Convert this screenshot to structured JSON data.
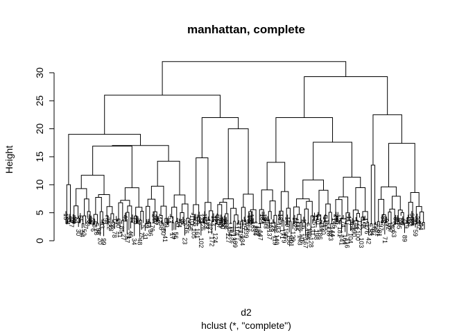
{
  "chart_data": {
    "type": "dendrogram",
    "title": "manhattan, complete",
    "xlabel": "d2",
    "sublabel": "hclust (*, \"complete\")",
    "ylabel": "Height",
    "ylim": [
      0,
      32
    ],
    "yticks": [
      0,
      5,
      10,
      15,
      20,
      25,
      30
    ],
    "leaf_count": 200,
    "root_height": 32.0,
    "top_merges": [
      {
        "name": "root",
        "height": 32.0
      },
      {
        "name": "left-main",
        "height": 26.0
      },
      {
        "name": "right-main",
        "height": 29.3
      },
      {
        "name": "left-a",
        "height": 19.0
      },
      {
        "name": "left-b",
        "height": 22.0
      },
      {
        "name": "right-a",
        "height": 22.0
      },
      {
        "name": "right-b",
        "height": 22.5
      }
    ],
    "leaf_labels": [
      "15",
      "4",
      "51",
      "77",
      "74",
      "9",
      "4",
      "30",
      "65",
      "54",
      "52",
      "7",
      "38",
      "98",
      "30",
      "6",
      "68",
      "26",
      "98",
      "20",
      "93",
      "99",
      "31",
      "73",
      "22",
      "13",
      "28",
      "78",
      "77",
      "10",
      "11",
      "85",
      "27",
      "40",
      "67",
      "21",
      "46",
      "12",
      "34",
      "25",
      "37",
      "48",
      "75",
      "5",
      "31",
      "49",
      "43",
      "36",
      "76",
      "24",
      "20",
      "45",
      "47",
      "58",
      "50",
      "41",
      "19",
      "1",
      "57",
      "17",
      "29",
      "56",
      "70",
      "14",
      "2",
      "32",
      "23",
      "16",
      "35",
      "55",
      "110",
      "105",
      "166",
      "161",
      "138",
      "102",
      "126",
      "182",
      "113",
      "193",
      "121",
      "172",
      "153",
      "124",
      "157",
      "197",
      "108",
      "130",
      "192",
      "158",
      "127",
      "154",
      "187",
      "132",
      "109",
      "114",
      "177",
      "195",
      "134",
      "145",
      "139",
      "168",
      "180",
      "188",
      "163",
      "194",
      "191",
      "159",
      "147",
      "184",
      "151",
      "133",
      "150",
      "137",
      "162",
      "178",
      "119",
      "140",
      "183",
      "189",
      "171",
      "179",
      "196",
      "169",
      "136",
      "101",
      "129",
      "152",
      "185",
      "112",
      "143",
      "115",
      "106",
      "167",
      "199",
      "160",
      "128",
      "131",
      "135",
      "198",
      "170",
      "186",
      "111",
      "120",
      "149",
      "155",
      "118",
      "123",
      "144",
      "146",
      "200",
      "125",
      "181",
      "141",
      "174",
      "164",
      "116",
      "117",
      "104",
      "164",
      "190",
      "148",
      "100",
      "122",
      "103",
      "156",
      "175",
      "176",
      "42",
      "53",
      "64",
      "61",
      "66",
      "91",
      "81",
      "97",
      "88",
      "71",
      "90",
      "92",
      "87",
      "62",
      "63",
      "83",
      "80",
      "95",
      "69",
      "60",
      "89",
      "79",
      "72",
      "84",
      "96",
      "86",
      "59",
      "39",
      "82",
      "94"
    ]
  }
}
